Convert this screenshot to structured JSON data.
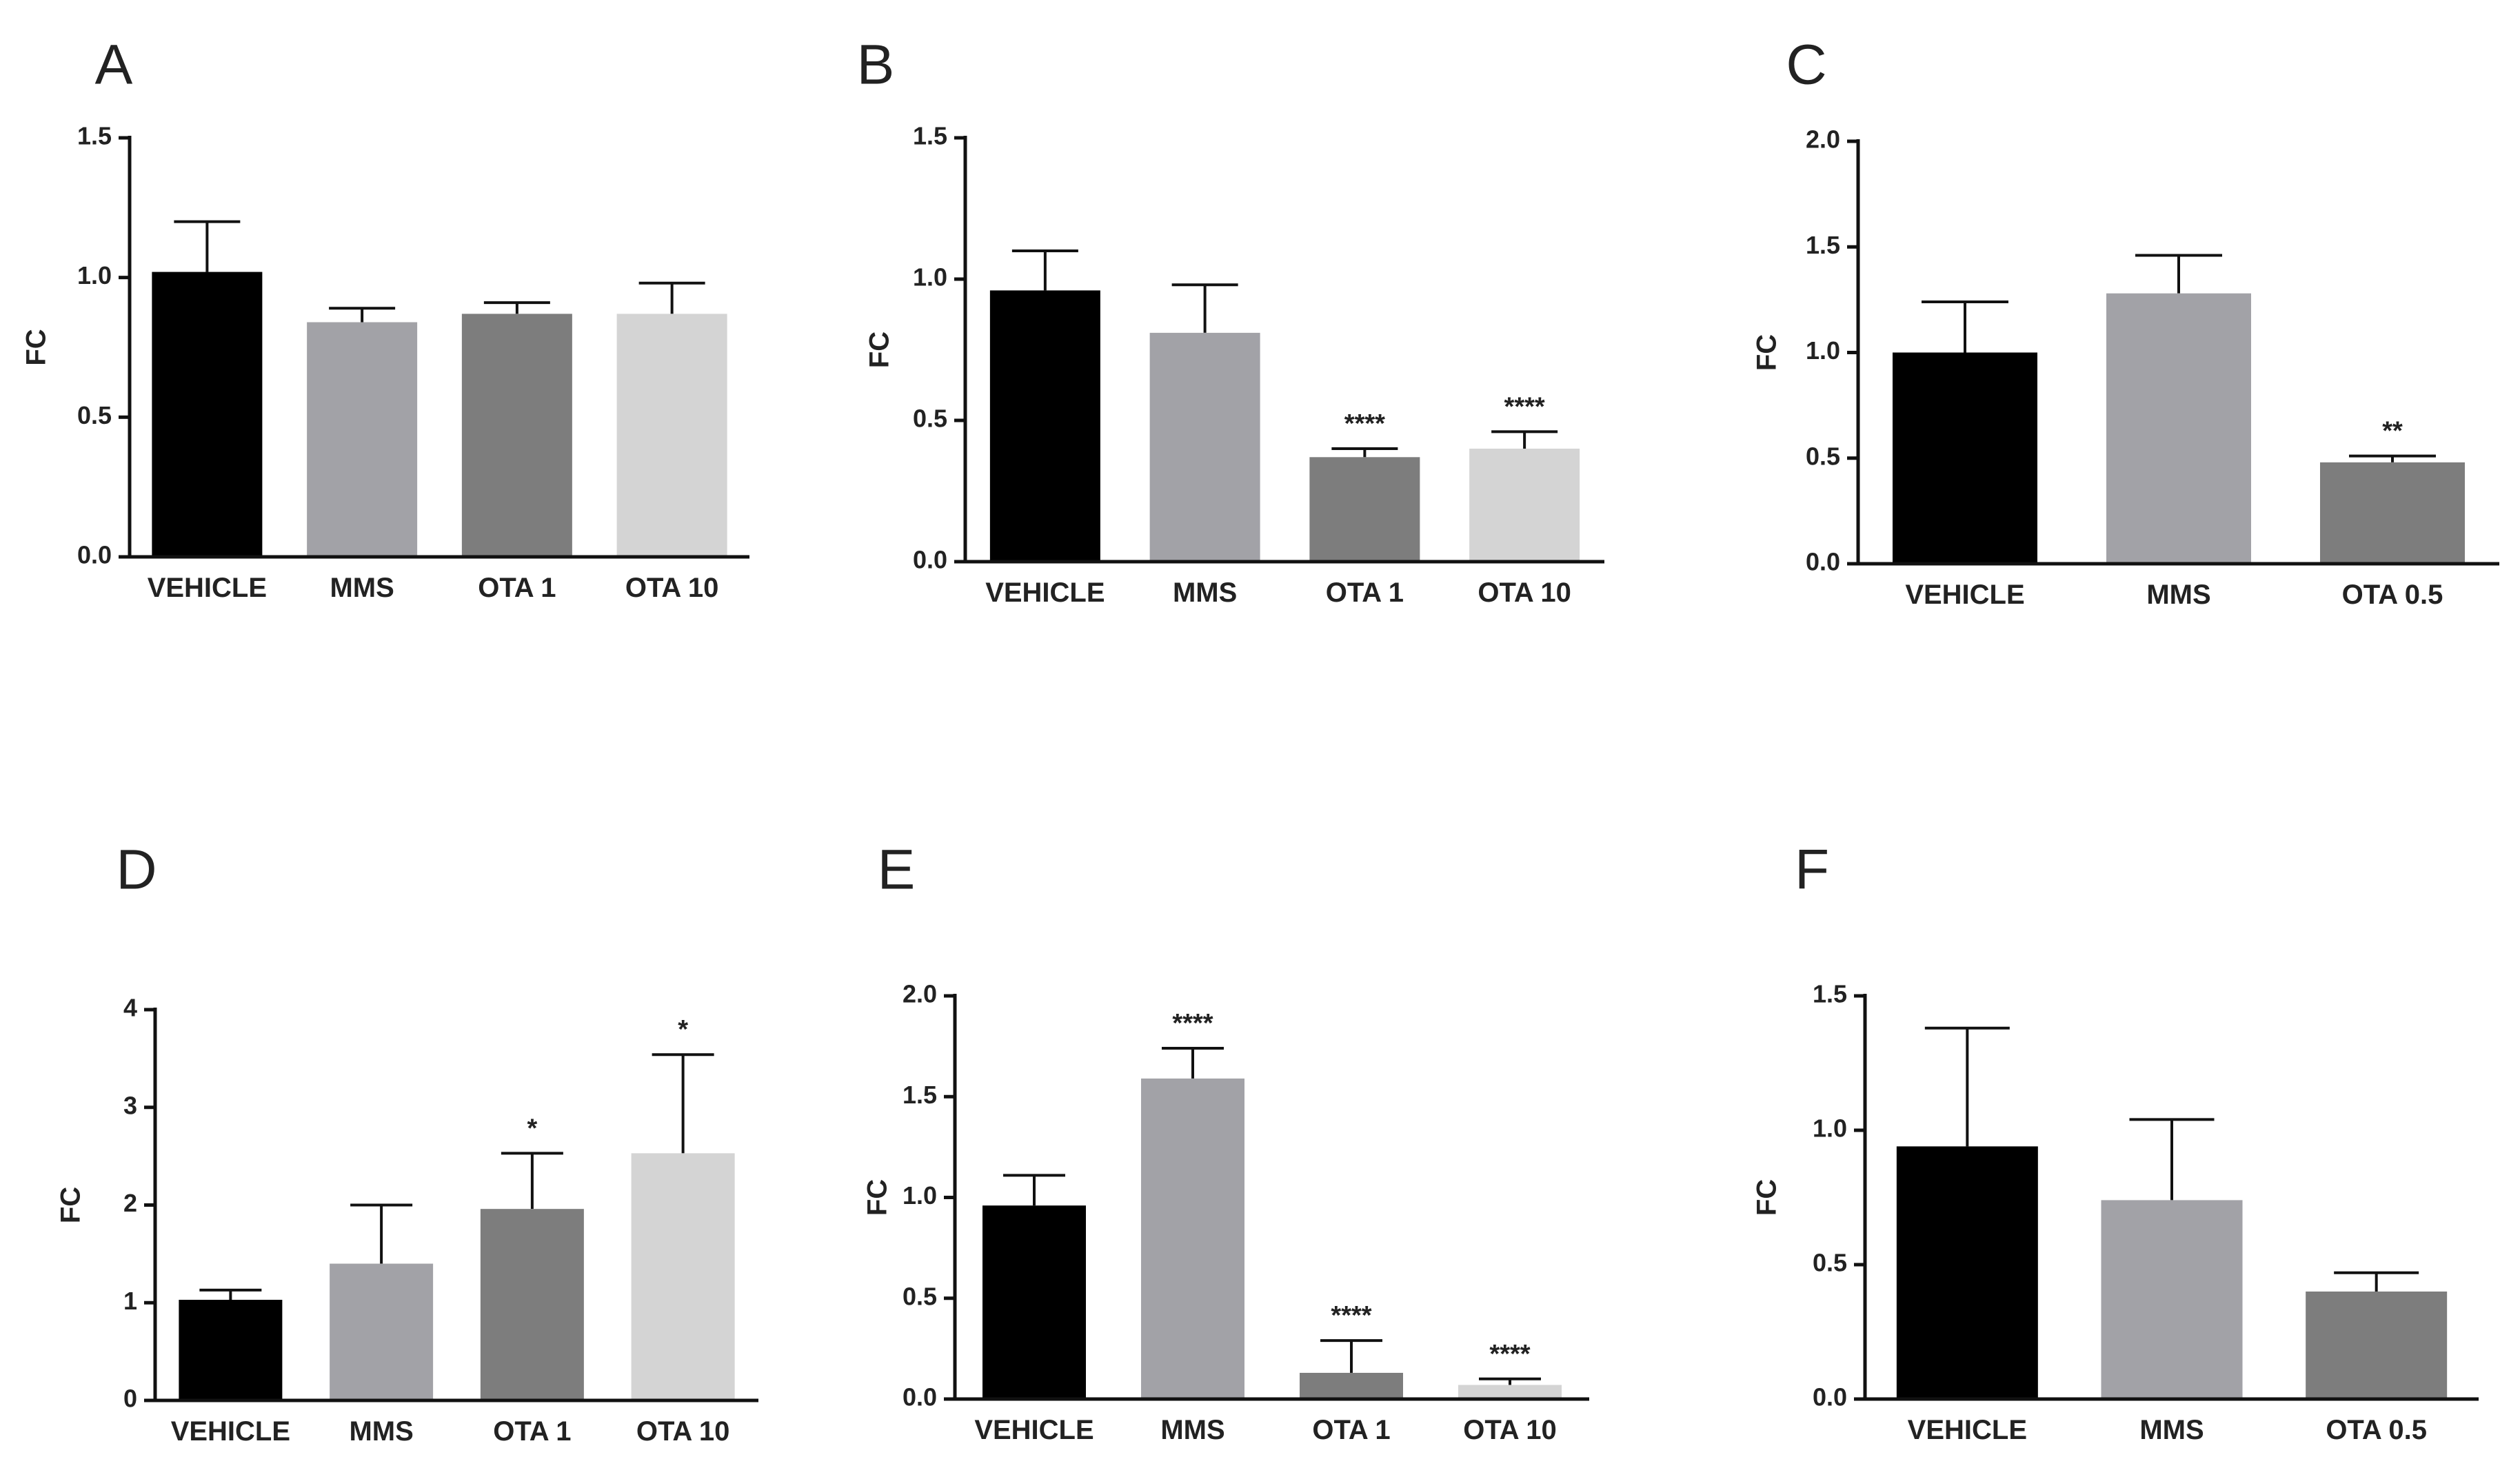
{
  "chart_data": [
    {
      "panel": "A",
      "type": "bar",
      "ylabel": "FC",
      "ylim": [
        0,
        1.5
      ],
      "yticks": [
        "0.0",
        "0.5",
        "1.0",
        "1.5"
      ],
      "categories": [
        "VEHICLE",
        "MMS",
        "OTA 1",
        "OTA 10"
      ],
      "values": [
        1.02,
        0.84,
        0.87,
        0.87
      ],
      "errors": [
        0.18,
        0.05,
        0.04,
        0.11
      ],
      "significance": [
        "",
        "",
        "",
        ""
      ],
      "colors": [
        "#000000",
        "#a2a2a7",
        "#7d7d7d",
        "#d4d4d4"
      ]
    },
    {
      "panel": "B",
      "type": "bar",
      "ylabel": "FC",
      "ylim": [
        0,
        1.5
      ],
      "yticks": [
        "0.0",
        "0.5",
        "1.0",
        "1.5"
      ],
      "categories": [
        "VEHICLE",
        "MMS",
        "OTA 1",
        "OTA 10"
      ],
      "values": [
        0.96,
        0.81,
        0.37,
        0.4
      ],
      "errors": [
        0.14,
        0.17,
        0.03,
        0.06
      ],
      "significance": [
        "",
        "",
        "****",
        "****"
      ],
      "colors": [
        "#000000",
        "#a2a2a7",
        "#7d7d7d",
        "#d4d4d4"
      ]
    },
    {
      "panel": "C",
      "type": "bar",
      "ylabel": "FC",
      "ylim": [
        0,
        2.0
      ],
      "yticks": [
        "0.0",
        "0.5",
        "1.0",
        "1.5",
        "2.0"
      ],
      "categories": [
        "VEHICLE",
        "MMS",
        "OTA 0.5"
      ],
      "values": [
        1.0,
        1.28,
        0.48
      ],
      "errors": [
        0.24,
        0.18,
        0.03
      ],
      "significance": [
        "",
        "",
        "**"
      ],
      "colors": [
        "#000000",
        "#a2a2a7",
        "#7d7d7d"
      ]
    },
    {
      "panel": "D",
      "type": "bar",
      "ylabel": "FC",
      "ylim": [
        0,
        4
      ],
      "yticks": [
        "0",
        "1",
        "2",
        "3",
        "4"
      ],
      "categories": [
        "VEHICLE",
        "MMS",
        "OTA 1",
        "OTA 10"
      ],
      "values": [
        1.03,
        1.4,
        1.96,
        2.53
      ],
      "errors": [
        0.1,
        0.6,
        0.57,
        1.01
      ],
      "significance": [
        "",
        "",
        "*",
        "*"
      ],
      "colors": [
        "#000000",
        "#a2a2a7",
        "#7d7d7d",
        "#d4d4d4"
      ]
    },
    {
      "panel": "E",
      "type": "bar",
      "ylabel": "FC",
      "ylim": [
        0,
        2.0
      ],
      "yticks": [
        "0.0",
        "0.5",
        "1.0",
        "1.5",
        "2.0"
      ],
      "categories": [
        "VEHICLE",
        "MMS",
        "OTA 1",
        "OTA 10"
      ],
      "values": [
        0.96,
        1.59,
        0.13,
        0.07
      ],
      "errors": [
        0.15,
        0.15,
        0.16,
        0.03
      ],
      "significance": [
        "",
        "****",
        "****",
        "****"
      ],
      "colors": [
        "#000000",
        "#a2a2a7",
        "#7d7d7d",
        "#d4d4d4"
      ]
    },
    {
      "panel": "F",
      "type": "bar",
      "ylabel": "FC",
      "ylim": [
        0,
        1.5
      ],
      "yticks": [
        "0.0",
        "0.5",
        "1.0",
        "1.5"
      ],
      "categories": [
        "VEHICLE",
        "MMS",
        "OTA 0.5"
      ],
      "values": [
        0.94,
        0.74,
        0.4
      ],
      "errors": [
        0.44,
        0.3,
        0.07
      ],
      "significance": [
        "",
        "",
        ""
      ],
      "colors": [
        "#000000",
        "#a2a2a7",
        "#7d7d7d"
      ]
    }
  ]
}
